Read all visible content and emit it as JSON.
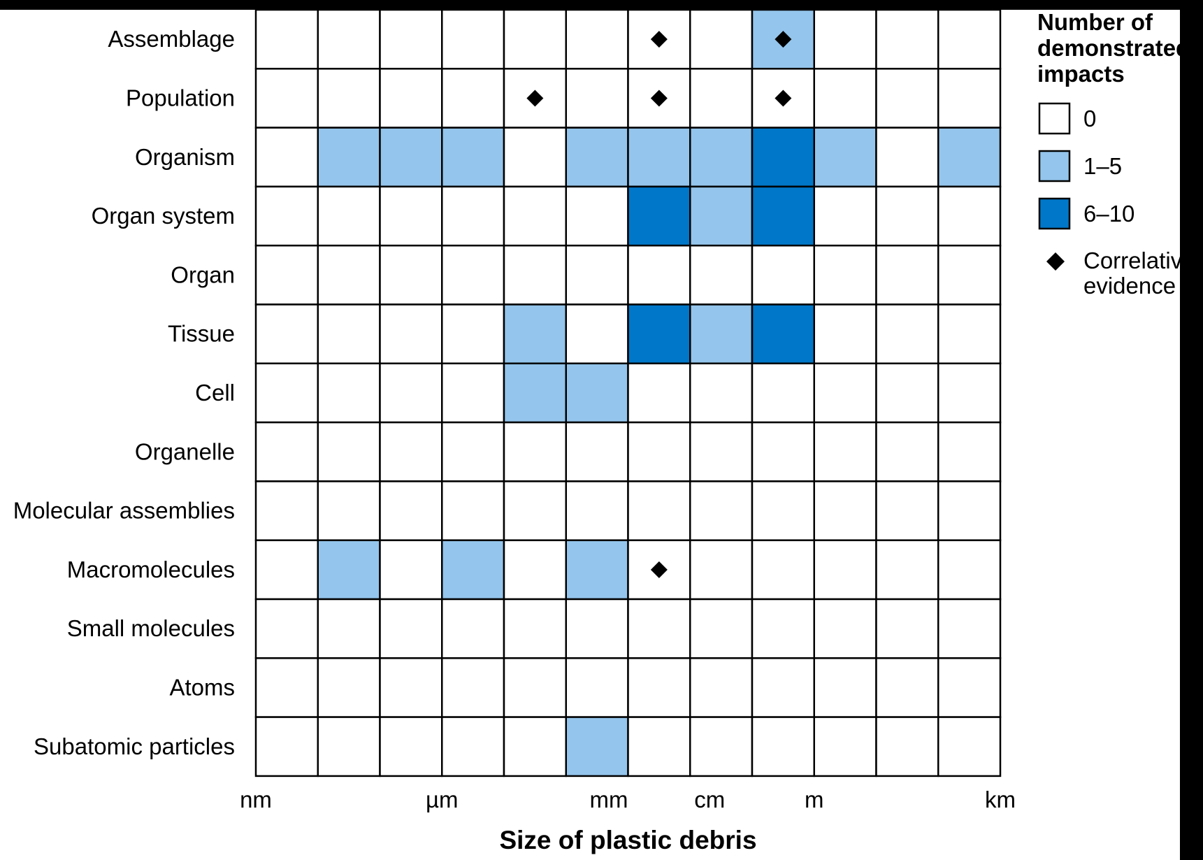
{
  "chart_data": {
    "type": "heatmap",
    "title": "",
    "xlabel": "Size of plastic debris",
    "ylabel": "",
    "rows": [
      "Assemblage",
      "Population",
      "Organism",
      "Organ system",
      "Organ",
      "Tissue",
      "Cell",
      "Organelle",
      "Molecular assemblies",
      "Macromolecules",
      "Small molecules",
      "Atoms",
      "Subatomic particles"
    ],
    "n_columns": 12,
    "x_tick_labels": [
      {
        "label": "nm",
        "boundary": 0
      },
      {
        "label": "µm",
        "boundary": 3
      },
      {
        "label": "mm",
        "boundary": 6
      },
      {
        "label": "cm",
        "boundary": 7
      },
      {
        "label": "m",
        "boundary": 9
      },
      {
        "label": "km",
        "boundary": 12
      }
    ],
    "impact_categories": [
      {
        "label": "0",
        "color": "#ffffff"
      },
      {
        "label": "1–5",
        "color": "#94c5ec"
      },
      {
        "label": "6–10",
        "color": "#0077c8"
      }
    ],
    "cells": [
      [
        0,
        0,
        0,
        0,
        0,
        0,
        0,
        0,
        1,
        0,
        0,
        0
      ],
      [
        0,
        0,
        0,
        0,
        0,
        0,
        0,
        0,
        0,
        0,
        0,
        0
      ],
      [
        0,
        1,
        1,
        1,
        0,
        1,
        1,
        1,
        2,
        1,
        0,
        1
      ],
      [
        0,
        0,
        0,
        0,
        0,
        0,
        2,
        1,
        2,
        0,
        0,
        0
      ],
      [
        0,
        0,
        0,
        0,
        0,
        0,
        0,
        0,
        0,
        0,
        0,
        0
      ],
      [
        0,
        0,
        0,
        0,
        1,
        0,
        2,
        1,
        2,
        0,
        0,
        0
      ],
      [
        0,
        0,
        0,
        0,
        1,
        1,
        0,
        0,
        0,
        0,
        0,
        0
      ],
      [
        0,
        0,
        0,
        0,
        0,
        0,
        0,
        0,
        0,
        0,
        0,
        0
      ],
      [
        0,
        0,
        0,
        0,
        0,
        0,
        0,
        0,
        0,
        0,
        0,
        0
      ],
      [
        0,
        1,
        0,
        1,
        0,
        1,
        0,
        0,
        0,
        0,
        0,
        0
      ],
      [
        0,
        0,
        0,
        0,
        0,
        0,
        0,
        0,
        0,
        0,
        0,
        0
      ],
      [
        0,
        0,
        0,
        0,
        0,
        0,
        0,
        0,
        0,
        0,
        0,
        0
      ],
      [
        0,
        0,
        0,
        0,
        0,
        1,
        0,
        0,
        0,
        0,
        0,
        0
      ]
    ],
    "correlative_evidence": [
      {
        "row": 0,
        "col": 6
      },
      {
        "row": 0,
        "col": 8
      },
      {
        "row": 1,
        "col": 4
      },
      {
        "row": 1,
        "col": 6
      },
      {
        "row": 1,
        "col": 8
      },
      {
        "row": 9,
        "col": 6
      }
    ],
    "legend": {
      "title_lines": [
        "Number of",
        "demonstrated",
        "impacts"
      ],
      "diamond_label_lines": [
        "Correlative",
        "evidence"
      ],
      "placement": "right"
    },
    "grid": true
  }
}
